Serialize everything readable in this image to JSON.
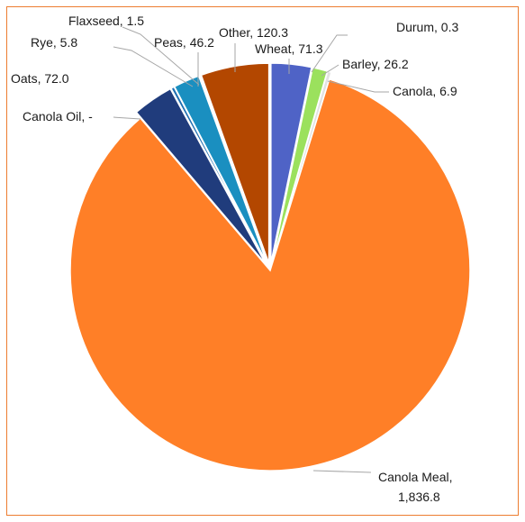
{
  "chart_data": {
    "type": "pie",
    "title": "",
    "slices": [
      {
        "label": "Wheat",
        "value": 71.3,
        "value_text": "71.3",
        "color": "#4F63C6"
      },
      {
        "label": "Durum",
        "value": 0.3,
        "value_text": "0.3",
        "color": "#A9D18E"
      },
      {
        "label": "Barley",
        "value": 26.2,
        "value_text": "26.2",
        "color": "#9BE15D"
      },
      {
        "label": "Canola",
        "value": 6.9,
        "value_text": "6.9",
        "color": "#E2E2E2"
      },
      {
        "label": "Canola Meal",
        "value": 1836.8,
        "value_text": "1,836.8",
        "color": "#FF7F27"
      },
      {
        "label": "Canola Oil",
        "value": 0,
        "value_text": "-",
        "color": "#FF7F27"
      },
      {
        "label": "Oats",
        "value": 72.0,
        "value_text": "72.0",
        "color": "#203C7C"
      },
      {
        "label": "Rye",
        "value": 5.8,
        "value_text": "5.8",
        "color": "#1F6FB2"
      },
      {
        "label": "Peas",
        "value": 46.2,
        "value_text": "46.2",
        "color": "#1A8FC0"
      },
      {
        "label": "Flaxseed",
        "value": 1.5,
        "value_text": "1.5",
        "color": "#7A9AD8"
      },
      {
        "label": "Other",
        "value": 120.3,
        "value_text": "120.3",
        "color": "#B34700"
      }
    ],
    "data_labels": [
      {
        "text": "Wheat,  71.3"
      },
      {
        "text": "Durum,  0.3"
      },
      {
        "text": "Barley,  26.2"
      },
      {
        "text": "Canola,  6.9"
      },
      {
        "text": "Canola Meal,"
      },
      {
        "text": "1,836.8"
      },
      {
        "text": "Canola Oil,  -"
      },
      {
        "text": "Oats,  72.0"
      },
      {
        "text": "Rye,  5.8"
      },
      {
        "text": "Peas,  46.2"
      },
      {
        "text": "Flaxseed,  1.5"
      },
      {
        "text": "Other,  120.3"
      }
    ],
    "legend": "none",
    "border_color": "#ED7D31"
  }
}
